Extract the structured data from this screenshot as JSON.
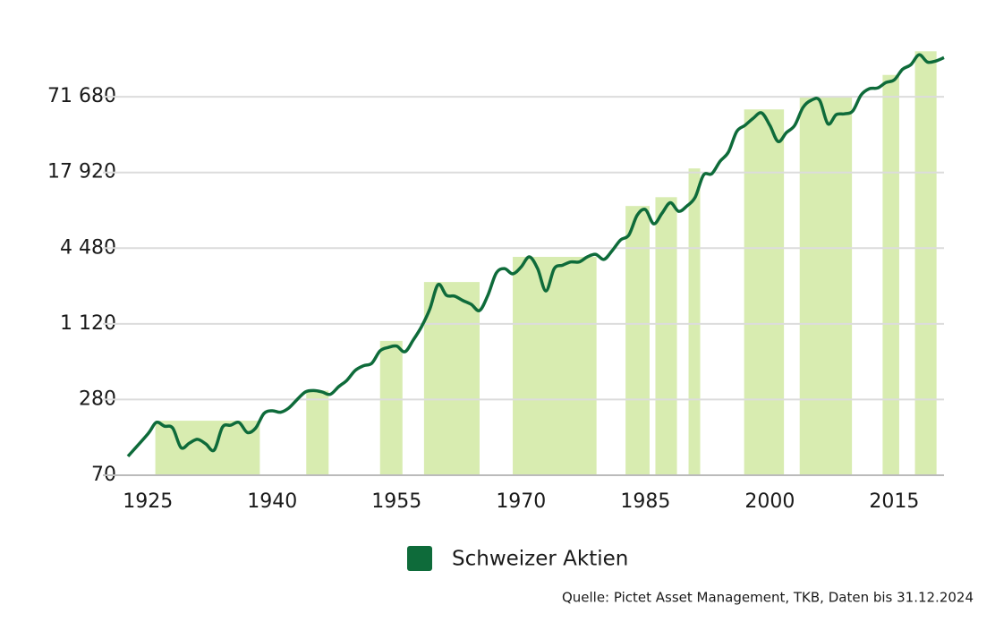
{
  "chart_data": {
    "type": "line",
    "log": true,
    "grid": true,
    "xlim": [
      1922.6,
      2021
    ],
    "xticks": [
      1925,
      1940,
      1955,
      1970,
      1985,
      2000,
      2015
    ],
    "ylim": [
      70,
      186000
    ],
    "yticks": [
      70,
      280,
      {
        "value": 1120,
        "label": "1 120"
      },
      {
        "value": 4480,
        "label": "4 480"
      },
      {
        "value": 17920,
        "label": "17 920"
      },
      {
        "value": 71680,
        "label": "71 680"
      }
    ],
    "x": [
      1922.6,
      1925,
      1926,
      1927,
      1928,
      1929,
      1930,
      1931,
      1932,
      1933,
      1934,
      1935,
      1936,
      1937,
      1938,
      1939,
      1940,
      1941,
      1942,
      1943,
      1944,
      1945,
      1946,
      1947,
      1948,
      1949,
      1950,
      1951,
      1952,
      1953,
      1954,
      1955,
      1956,
      1957,
      1958,
      1959,
      1960,
      1961,
      1962,
      1963,
      1964,
      1965,
      1966,
      1967,
      1968,
      1969,
      1970,
      1971,
      1972,
      1973,
      1974,
      1975,
      1976,
      1977,
      1978,
      1979,
      1980,
      1981,
      1982,
      1983,
      1984,
      1985,
      1986,
      1987,
      1988,
      1989,
      1990,
      1991,
      1992,
      1993,
      1994,
      1995,
      1996,
      1997,
      1998,
      1999,
      2000,
      2001,
      2002,
      2003,
      2004,
      2005,
      2006,
      2007,
      2008,
      2009,
      2010,
      2011,
      2012,
      2013,
      2014,
      2015,
      2016,
      2017,
      2018,
      2019,
      2020,
      2021
    ],
    "series": [
      {
        "name": "Schweizer Aktien",
        "color": "#0e6b3a",
        "values": [
          99,
          149,
          184,
          172,
          166,
          116,
          126,
          135,
          124,
          111,
          169,
          175,
          184,
          153,
          166,
          217,
          228,
          222,
          240,
          280,
          322,
          330,
          322,
          308,
          354,
          398,
          477,
          520,
          544,
          683,
          728,
          745,
          672,
          833,
          1064,
          1470,
          2300,
          1890,
          1860,
          1715,
          1600,
          1430,
          1890,
          2830,
          3080,
          2800,
          3170,
          3820,
          3080,
          2045,
          3080,
          3280,
          3480,
          3480,
          3820,
          4000,
          3650,
          4290,
          5210,
          5700,
          8190,
          9080,
          7000,
          8500,
          10300,
          8800,
          9700,
          11400,
          17100,
          17500,
          22000,
          26000,
          37900,
          42500,
          48400,
          53400,
          42500,
          31600,
          37200,
          42500,
          59000,
          67300,
          67300,
          43700,
          51700,
          52500,
          55300,
          74000,
          83100,
          84300,
          93100,
          97700,
          118600,
          129000,
          154800,
          135500,
          138000,
          147000
        ]
      }
    ],
    "shaded_color": "#d8ecb0",
    "shaded_periods": [
      {
        "start": 1925.9,
        "end": 1938.5,
        "top": 190
      },
      {
        "start": 1944.1,
        "end": 1946.8,
        "top": 330
      },
      {
        "start": 1953.0,
        "end": 1955.7,
        "top": 820
      },
      {
        "start": 1958.3,
        "end": 1965.0,
        "top": 2410
      },
      {
        "start": 1969.0,
        "end": 1979.1,
        "top": 3820
      },
      {
        "start": 1982.6,
        "end": 1985.5,
        "top": 9700
      },
      {
        "start": 1986.2,
        "end": 1988.8,
        "top": 11400
      },
      {
        "start": 1990.2,
        "end": 1991.6,
        "top": 19300
      },
      {
        "start": 1996.9,
        "end": 2001.7,
        "top": 56900
      },
      {
        "start": 2003.6,
        "end": 2009.9,
        "top": 71700
      },
      {
        "start": 2013.6,
        "end": 2015.6,
        "top": 107000
      },
      {
        "start": 2017.5,
        "end": 2020.1,
        "top": 165000
      }
    ],
    "source": "Quelle: Pictet Asset Management, TKB, Daten bis 31.12.2024"
  }
}
